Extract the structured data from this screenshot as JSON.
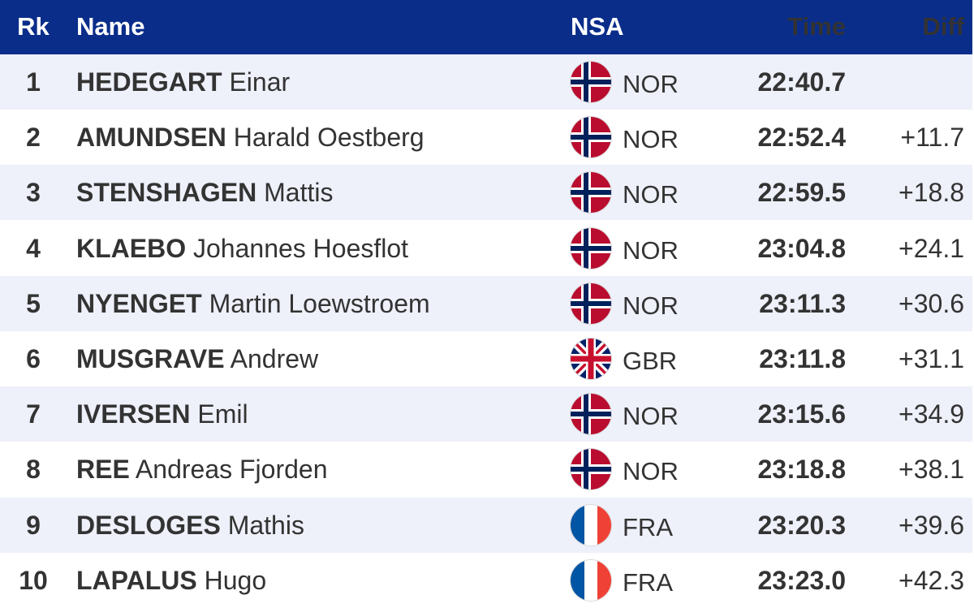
{
  "header": {
    "rank": "Rk",
    "name": "Name",
    "nsa": "NSA",
    "time": "Time",
    "diff": "Diff"
  },
  "colors": {
    "header_bg": "#0a2d8a",
    "row_alt_bg": "#eef0fa",
    "text": "#333333"
  },
  "rows": [
    {
      "rank": "1",
      "surname": "HEDEGART",
      "given": "Einar",
      "nsa": "NOR",
      "flag": "norway-flag-icon",
      "time": "22:40.7",
      "diff": ""
    },
    {
      "rank": "2",
      "surname": "AMUNDSEN",
      "given": "Harald Oestberg",
      "nsa": "NOR",
      "flag": "norway-flag-icon",
      "time": "22:52.4",
      "diff": "+11.7"
    },
    {
      "rank": "3",
      "surname": "STENSHAGEN",
      "given": "Mattis",
      "nsa": "NOR",
      "flag": "norway-flag-icon",
      "time": "22:59.5",
      "diff": "+18.8"
    },
    {
      "rank": "4",
      "surname": "KLAEBO",
      "given": "Johannes Hoesflot",
      "nsa": "NOR",
      "flag": "norway-flag-icon",
      "time": "23:04.8",
      "diff": "+24.1"
    },
    {
      "rank": "5",
      "surname": "NYENGET",
      "given": "Martin Loewstroem",
      "nsa": "NOR",
      "flag": "norway-flag-icon",
      "time": "23:11.3",
      "diff": "+30.6"
    },
    {
      "rank": "6",
      "surname": "MUSGRAVE",
      "given": "Andrew",
      "nsa": "GBR",
      "flag": "uk-flag-icon",
      "time": "23:11.8",
      "diff": "+31.1"
    },
    {
      "rank": "7",
      "surname": "IVERSEN",
      "given": "Emil",
      "nsa": "NOR",
      "flag": "norway-flag-icon",
      "time": "23:15.6",
      "diff": "+34.9"
    },
    {
      "rank": "8",
      "surname": "REE",
      "given": "Andreas Fjorden",
      "nsa": "NOR",
      "flag": "norway-flag-icon",
      "time": "23:18.8",
      "diff": "+38.1"
    },
    {
      "rank": "9",
      "surname": "DESLOGES",
      "given": "Mathis",
      "nsa": "FRA",
      "flag": "france-flag-icon",
      "time": "23:20.3",
      "diff": "+39.6"
    },
    {
      "rank": "10",
      "surname": "LAPALUS",
      "given": "Hugo",
      "nsa": "FRA",
      "flag": "france-flag-icon",
      "time": "23:23.0",
      "diff": "+42.3"
    }
  ]
}
